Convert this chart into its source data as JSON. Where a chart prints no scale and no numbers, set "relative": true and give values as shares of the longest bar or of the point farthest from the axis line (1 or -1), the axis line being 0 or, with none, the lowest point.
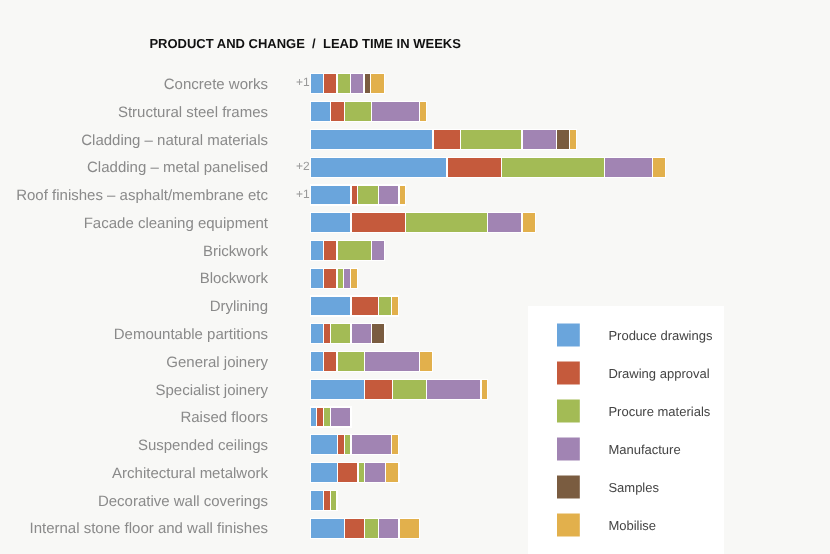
{
  "chart_data": {
    "type": "bar",
    "orientation": "horizontal",
    "stacked": true,
    "relative": true,
    "title": "PRODUCT AND CHANGE  /  LEAD TIME IN WEEKS",
    "categories": [
      "Concrete works",
      "Structural steel frames",
      "Cladding – natural materials",
      "Cladding – metal panelised",
      "Roof finishes – asphalt/membrane etc",
      "Facade cleaning equipment",
      "Brickwork",
      "Blockwork",
      "Drylining",
      "Demountable partitions",
      "General joinery",
      "Specialist joinery",
      "Raised floors",
      "Suspended ceilings",
      "Architectural metalwork",
      "Decorative wall coverings",
      "Internal stone floor and wall finishes"
    ],
    "series": [
      {
        "name": "Produce drawings",
        "color": "#6aa5dc",
        "values": [
          0.038,
          0.058,
          0.346,
          0.385,
          0.115,
          0.115,
          0.038,
          0.038,
          0.115,
          0.038,
          0.038,
          0.154,
          0.019,
          0.077,
          0.077,
          0.038,
          0.096
        ]
      },
      {
        "name": "Drawing approval",
        "color": "#c55a3c",
        "values": [
          0.038,
          0.038,
          0.077,
          0.154,
          0.019,
          0.154,
          0.038,
          0.038,
          0.077,
          0.019,
          0.038,
          0.077,
          0.019,
          0.019,
          0.058,
          0.019,
          0.058
        ]
      },
      {
        "name": "Procure materials",
        "color": "#a3bb55",
        "values": [
          0.038,
          0.077,
          0.173,
          0.288,
          0.058,
          0.231,
          0.096,
          0.019,
          0.038,
          0.058,
          0.077,
          0.096,
          0.019,
          0.019,
          0.019,
          0.019,
          0.038
        ]
      },
      {
        "name": "Manufacture",
        "color": "#a184b3",
        "values": [
          0.038,
          0.135,
          0.096,
          0.135,
          0.058,
          0.096,
          0.038,
          0.019,
          null,
          0.058,
          0.154,
          0.154,
          0.058,
          0.115,
          0.058,
          null,
          0.058
        ]
      },
      {
        "name": "Samples",
        "color": "#7a5c40",
        "values": [
          0.019,
          null,
          0.038,
          null,
          null,
          null,
          null,
          null,
          null,
          0.038,
          null,
          null,
          null,
          null,
          null,
          null,
          null
        ]
      },
      {
        "name": "Mobilise",
        "color": "#e2b04c",
        "values": [
          0.038,
          0.019,
          0.019,
          0.038,
          0.019,
          0.038,
          null,
          0.019,
          0.019,
          null,
          0.038,
          0.019,
          null,
          0.019,
          0.038,
          null,
          0.058
        ]
      }
    ],
    "annotations": [
      {
        "text": "+1",
        "y": "Concrete works"
      },
      {
        "text": "+2",
        "y": "Cladding – metal panelised"
      },
      {
        "text": "+1",
        "y": "Roof finishes – asphalt/membrane etc"
      }
    ],
    "legend": "bottom right"
  }
}
